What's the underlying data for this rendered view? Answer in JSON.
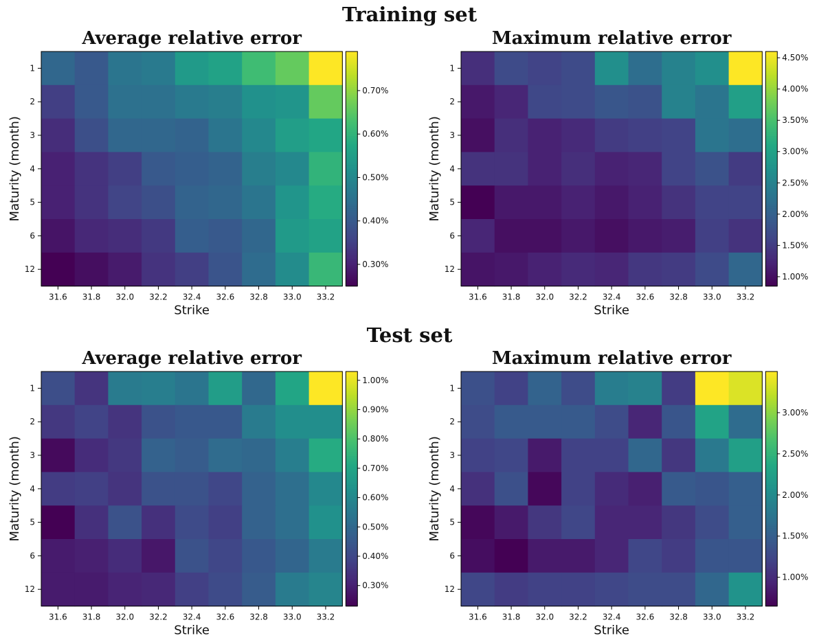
{
  "sections": [
    {
      "title": "Training set"
    },
    {
      "title": "Test set"
    }
  ],
  "chart_data": [
    {
      "type": "heatmap",
      "title": "Average relative error",
      "xlabel": "Strike",
      "ylabel": "Maturity (month)",
      "x": [
        "31.6",
        "31.8",
        "32.0",
        "32.2",
        "32.4",
        "32.6",
        "32.8",
        "33.0",
        "33.2"
      ],
      "y": [
        "1",
        "2",
        "3",
        "4",
        "5",
        "6",
        "12"
      ],
      "colorbar": {
        "vmin": 0.25,
        "vmax": 0.79,
        "ticks": [
          "0.30%",
          "0.40%",
          "0.50%",
          "0.60%",
          "0.70%"
        ],
        "tick_values": [
          0.3,
          0.4,
          0.5,
          0.6,
          0.7
        ]
      },
      "values": [
        [
          0.43,
          0.4,
          0.46,
          0.47,
          0.54,
          0.56,
          0.62,
          0.66,
          0.79
        ],
        [
          0.35,
          0.4,
          0.45,
          0.45,
          0.47,
          0.48,
          0.52,
          0.53,
          0.66
        ],
        [
          0.32,
          0.38,
          0.43,
          0.43,
          0.42,
          0.46,
          0.5,
          0.55,
          0.57
        ],
        [
          0.3,
          0.33,
          0.35,
          0.4,
          0.41,
          0.42,
          0.48,
          0.5,
          0.6
        ],
        [
          0.3,
          0.33,
          0.36,
          0.38,
          0.42,
          0.43,
          0.46,
          0.53,
          0.58
        ],
        [
          0.28,
          0.31,
          0.32,
          0.34,
          0.41,
          0.4,
          0.43,
          0.54,
          0.56
        ],
        [
          0.25,
          0.27,
          0.29,
          0.33,
          0.35,
          0.39,
          0.44,
          0.51,
          0.61
        ]
      ]
    },
    {
      "type": "heatmap",
      "title": "Maximum relative error",
      "xlabel": "Strike",
      "ylabel": "Maturity (month)",
      "x": [
        "31.6",
        "31.8",
        "32.0",
        "32.2",
        "32.4",
        "32.6",
        "32.8",
        "33.0",
        "33.2"
      ],
      "y": [
        "1",
        "2",
        "3",
        "4",
        "5",
        "6",
        "12"
      ],
      "colorbar": {
        "vmin": 0.85,
        "vmax": 4.6,
        "ticks": [
          "1.00%",
          "1.50%",
          "2.00%",
          "2.50%",
          "3.00%",
          "3.50%",
          "4.00%",
          "4.50%"
        ],
        "tick_values": [
          1.0,
          1.5,
          2.0,
          2.5,
          3.0,
          3.5,
          4.0,
          4.5
        ]
      },
      "values": [
        [
          1.35,
          1.7,
          1.6,
          1.7,
          2.7,
          2.2,
          2.5,
          2.7,
          4.6
        ],
        [
          1.1,
          1.25,
          1.65,
          1.7,
          1.85,
          1.8,
          2.5,
          2.3,
          2.95
        ],
        [
          1.0,
          1.35,
          1.2,
          1.3,
          1.5,
          1.55,
          1.6,
          2.3,
          2.2
        ],
        [
          1.4,
          1.4,
          1.2,
          1.35,
          1.2,
          1.25,
          1.6,
          1.8,
          1.5
        ],
        [
          0.85,
          1.1,
          1.1,
          1.2,
          1.1,
          1.2,
          1.4,
          1.6,
          1.6
        ],
        [
          1.25,
          1.0,
          1.0,
          1.1,
          1.0,
          1.1,
          1.15,
          1.55,
          1.4
        ],
        [
          1.05,
          1.1,
          1.2,
          1.3,
          1.25,
          1.45,
          1.5,
          1.7,
          2.1
        ]
      ]
    },
    {
      "type": "heatmap",
      "title": "Average relative error",
      "xlabel": "Strike",
      "ylabel": "Maturity (month)",
      "x": [
        "31.6",
        "31.8",
        "32.0",
        "32.2",
        "32.4",
        "32.6",
        "32.8",
        "33.0",
        "33.2"
      ],
      "y": [
        "1",
        "2",
        "3",
        "4",
        "5",
        "6",
        "12"
      ],
      "colorbar": {
        "vmin": 0.23,
        "vmax": 1.03,
        "ticks": [
          "0.30%",
          "0.40%",
          "0.50%",
          "0.60%",
          "0.70%",
          "0.80%",
          "0.90%",
          "1.00%"
        ],
        "tick_values": [
          0.3,
          0.4,
          0.5,
          0.6,
          0.7,
          0.8,
          0.9,
          1.0
        ]
      },
      "values": [
        [
          0.42,
          0.35,
          0.56,
          0.57,
          0.54,
          0.67,
          0.5,
          0.7,
          1.03
        ],
        [
          0.36,
          0.39,
          0.35,
          0.43,
          0.45,
          0.45,
          0.56,
          0.62,
          0.62
        ],
        [
          0.25,
          0.33,
          0.36,
          0.48,
          0.46,
          0.51,
          0.5,
          0.57,
          0.72
        ],
        [
          0.37,
          0.38,
          0.35,
          0.43,
          0.43,
          0.4,
          0.48,
          0.52,
          0.6
        ],
        [
          0.23,
          0.34,
          0.43,
          0.34,
          0.41,
          0.38,
          0.48,
          0.52,
          0.63
        ],
        [
          0.29,
          0.3,
          0.33,
          0.28,
          0.43,
          0.4,
          0.45,
          0.49,
          0.56
        ],
        [
          0.29,
          0.29,
          0.31,
          0.32,
          0.38,
          0.41,
          0.46,
          0.56,
          0.59
        ]
      ]
    },
    {
      "type": "heatmap",
      "title": "Maximum relative error",
      "xlabel": "Strike",
      "ylabel": "Maturity (month)",
      "x": [
        "31.6",
        "31.8",
        "32.0",
        "32.2",
        "32.4",
        "32.6",
        "32.8",
        "33.0",
        "33.2"
      ],
      "y": [
        "1",
        "2",
        "3",
        "4",
        "5",
        "6",
        "12"
      ],
      "colorbar": {
        "vmin": 0.65,
        "vmax": 3.5,
        "ticks": [
          "1.00%",
          "1.50%",
          "2.00%",
          "2.50%",
          "3.00%"
        ],
        "tick_values": [
          1.0,
          1.5,
          2.0,
          2.5,
          3.0
        ]
      },
      "values": [
        [
          1.35,
          1.2,
          1.55,
          1.3,
          1.85,
          1.9,
          1.15,
          3.5,
          3.35
        ],
        [
          1.3,
          1.45,
          1.45,
          1.45,
          1.3,
          0.95,
          1.4,
          2.3,
          1.65
        ],
        [
          1.2,
          1.25,
          0.85,
          1.2,
          1.2,
          1.6,
          1.1,
          1.8,
          2.25
        ],
        [
          1.05,
          1.35,
          0.7,
          1.2,
          1.0,
          0.9,
          1.45,
          1.4,
          1.5
        ],
        [
          0.7,
          0.85,
          1.1,
          1.25,
          0.95,
          0.95,
          1.1,
          1.3,
          1.5
        ],
        [
          0.75,
          0.65,
          0.85,
          0.85,
          0.95,
          1.25,
          1.15,
          1.4,
          1.4
        ],
        [
          1.25,
          1.15,
          1.2,
          1.2,
          1.25,
          1.3,
          1.3,
          1.6,
          2.1
        ]
      ]
    }
  ]
}
